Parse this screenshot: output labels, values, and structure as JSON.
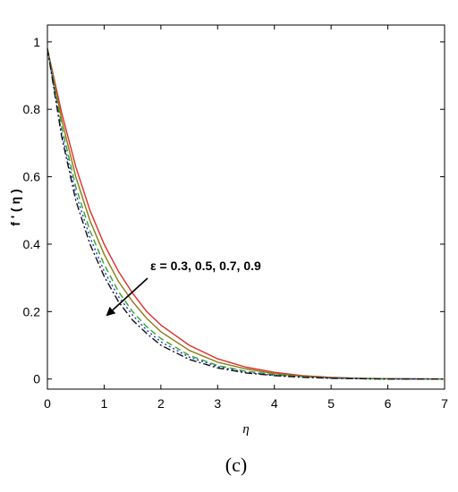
{
  "chart_data": {
    "type": "line",
    "xlabel": "η",
    "ylabel": "f ' ( η )",
    "xlim": [
      0,
      7
    ],
    "ylim": [
      -0.03,
      1.05
    ],
    "x_ticks": [
      "0",
      "1",
      "2",
      "3",
      "4",
      "5",
      "6",
      "7"
    ],
    "y_ticks": [
      "0",
      "0.2",
      "0.4",
      "0.6",
      "0.8",
      "1"
    ],
    "grid": false,
    "annotation": "ε = 0.3, 0.5, 0.7, 0.9",
    "caption": "(c)",
    "series": [
      {
        "color": "#e32b2b",
        "style": "solid",
        "x": [
          0,
          0.25,
          0.5,
          0.75,
          1,
          1.25,
          1.5,
          1.75,
          2,
          2.5,
          3,
          3.5,
          4,
          4.5,
          5,
          5.5,
          6,
          7
        ],
        "y": [
          0.98,
          0.79,
          0.63,
          0.5,
          0.4,
          0.32,
          0.255,
          0.2,
          0.16,
          0.1,
          0.06,
          0.035,
          0.02,
          0.01,
          0.005,
          0.002,
          0.001,
          0.0
        ]
      },
      {
        "color": "#8a7a12",
        "style": "solid",
        "x": [
          0,
          0.25,
          0.5,
          0.75,
          1,
          1.25,
          1.5,
          1.75,
          2,
          2.5,
          3,
          3.5,
          4,
          4.5,
          5,
          5.5,
          6,
          7
        ],
        "y": [
          0.98,
          0.77,
          0.6,
          0.47,
          0.37,
          0.29,
          0.23,
          0.18,
          0.14,
          0.085,
          0.05,
          0.03,
          0.016,
          0.008,
          0.004,
          0.002,
          0.001,
          0.0
        ]
      },
      {
        "color": "#2aa82a",
        "style": "dashed",
        "x": [
          0,
          0.25,
          0.5,
          0.75,
          1,
          1.25,
          1.5,
          1.75,
          2,
          2.5,
          3,
          3.5,
          4,
          4.5,
          5,
          5.5,
          6,
          7
        ],
        "y": [
          0.98,
          0.75,
          0.57,
          0.44,
          0.34,
          0.26,
          0.2,
          0.155,
          0.12,
          0.07,
          0.04,
          0.023,
          0.013,
          0.007,
          0.003,
          0.001,
          0.0,
          0.0
        ]
      },
      {
        "color": "#1c2fd6",
        "style": "dotted",
        "x": [
          0,
          0.25,
          0.5,
          0.75,
          1,
          1.25,
          1.5,
          1.75,
          2,
          2.5,
          3,
          3.5,
          4,
          4.5,
          5,
          5.5,
          6,
          7
        ],
        "y": [
          0.98,
          0.73,
          0.55,
          0.42,
          0.32,
          0.245,
          0.19,
          0.145,
          0.11,
          0.065,
          0.037,
          0.02,
          0.011,
          0.006,
          0.003,
          0.001,
          0.0,
          0.0
        ]
      },
      {
        "color": "#111111",
        "style": "dashdot",
        "x": [
          0,
          0.25,
          0.5,
          0.75,
          1,
          1.25,
          1.5,
          1.75,
          2,
          2.5,
          3,
          3.5,
          4,
          4.5,
          5,
          5.5,
          6,
          7
        ],
        "y": [
          0.98,
          0.72,
          0.53,
          0.4,
          0.305,
          0.23,
          0.175,
          0.135,
          0.1,
          0.058,
          0.033,
          0.018,
          0.01,
          0.005,
          0.002,
          0.001,
          0.0,
          0.0
        ]
      }
    ]
  }
}
